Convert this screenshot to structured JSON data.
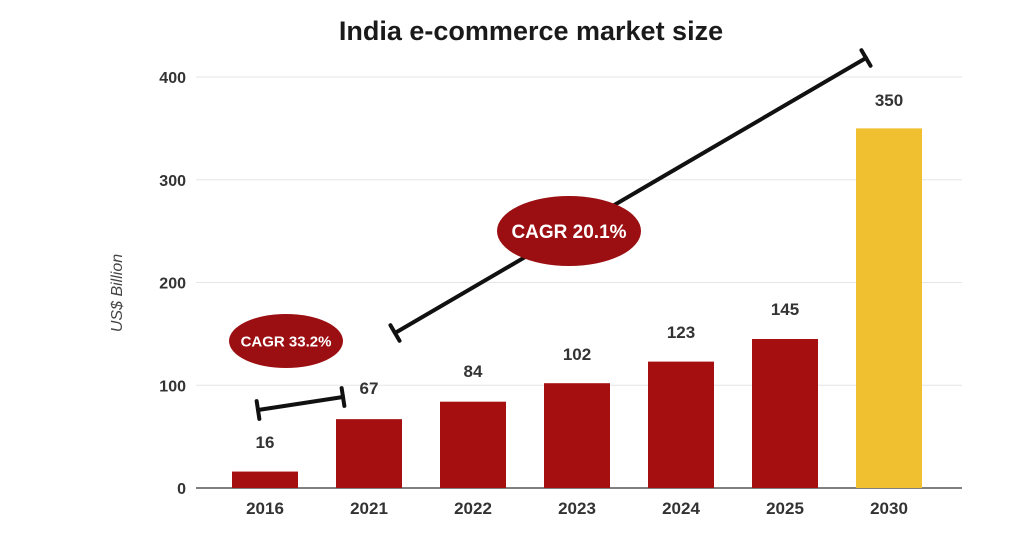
{
  "chart_data": {
    "type": "bar",
    "title": "India e-commerce market size",
    "ylabel": "US$ Billion",
    "xlabel": "",
    "categories": [
      "2016",
      "2021",
      "2022",
      "2023",
      "2024",
      "2025",
      "2030"
    ],
    "values": [
      16,
      67,
      84,
      102,
      123,
      145,
      350
    ],
    "data_labels": [
      "16",
      "67",
      "84",
      "102",
      "123",
      "145",
      "350"
    ],
    "ylim": [
      0,
      400
    ],
    "yticks": [
      0,
      100,
      200,
      300,
      400
    ],
    "ytick_labels": [
      "0",
      "100",
      "200",
      "300",
      "400"
    ],
    "grid": true,
    "colors": {
      "bar": "#a50f0f",
      "highlight": "#f0c030",
      "annotation": "#9b0f12",
      "grid": "#e6e6e6",
      "axis": "#555555"
    },
    "highlight_index": 6,
    "annotations": [
      {
        "text": "CAGR 33.2%",
        "from": "2016",
        "to": "2021"
      },
      {
        "text": "CAGR 20.1%",
        "from": "2021",
        "to": "2030"
      }
    ]
  }
}
